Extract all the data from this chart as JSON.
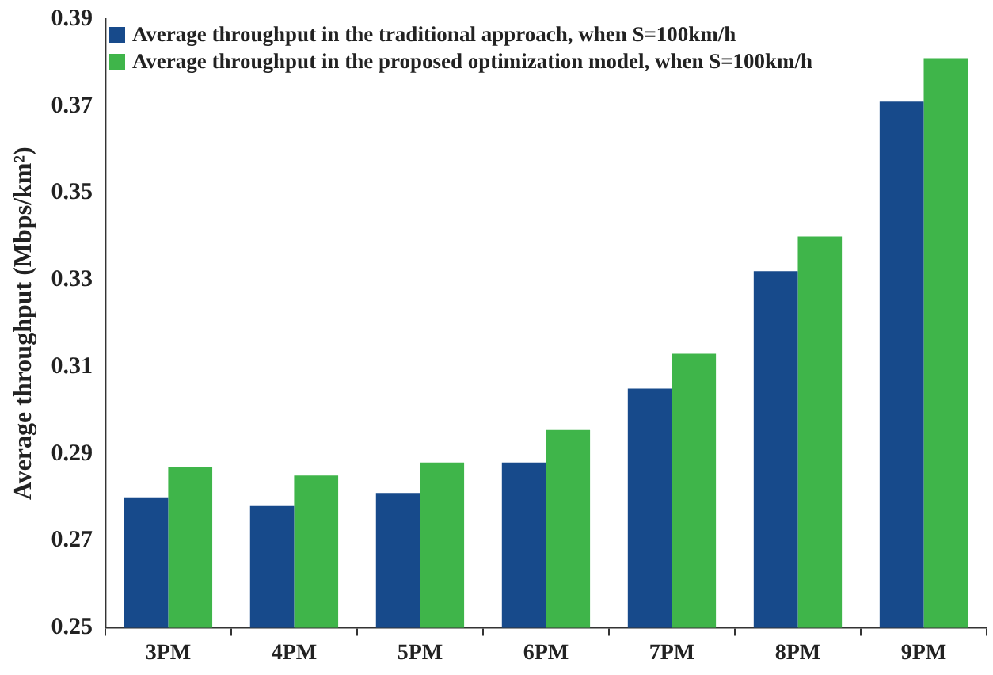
{
  "chart_data": {
    "type": "bar",
    "ylabel": "Average throughput (Mbps/km²)",
    "categories": [
      "3PM",
      "4PM",
      "5PM",
      "6PM",
      "7PM",
      "8PM",
      "9PM"
    ],
    "series": [
      {
        "name": "Average throughput in the traditional approach, when S=100km/h",
        "color": "#174a8b",
        "values": [
          0.28,
          0.278,
          0.281,
          0.288,
          0.305,
          0.332,
          0.371
        ]
      },
      {
        "name": "Average throughput in the proposed optimization model, when S=100km/h",
        "color": "#3fb54a",
        "values": [
          0.287,
          0.285,
          0.288,
          0.2955,
          0.313,
          0.34,
          0.381
        ]
      }
    ],
    "ylim": [
      0.25,
      0.39
    ],
    "yticks": [
      0.25,
      0.27,
      0.29,
      0.31,
      0.33,
      0.35,
      0.37,
      0.39
    ],
    "grid": false,
    "legend": "top left"
  }
}
